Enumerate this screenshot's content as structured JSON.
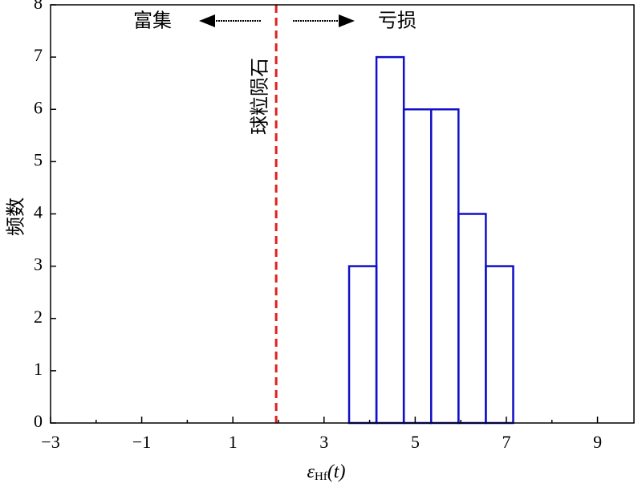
{
  "chart_data": {
    "type": "histogram",
    "xlabel": {
      "symbol": "ε",
      "subscript": "Hf",
      "argument": "(t)"
    },
    "ylabel": "频数",
    "bins": [
      3.55,
      4.15,
      4.75,
      5.35,
      5.95,
      6.55,
      7.15
    ],
    "values": [
      3,
      7,
      6,
      6,
      4,
      3
    ],
    "color": "#1010c8",
    "xlim": [
      -3,
      9.8
    ],
    "ylim": [
      0,
      8
    ],
    "xticks": [
      {
        "value": -3,
        "label": "−3"
      },
      {
        "value": -1,
        "label": "−1"
      },
      1,
      3,
      5,
      7,
      9
    ],
    "xminor_ticks": [
      -2,
      0,
      2,
      4,
      6,
      8
    ],
    "yticks": [
      0,
      1,
      2,
      3,
      4,
      5,
      6,
      7,
      8
    ],
    "reference_line": {
      "x": 1.95,
      "color": "#e02020",
      "label": "球粒陨石"
    },
    "annotations": {
      "left": "富集",
      "right": "亏损"
    }
  }
}
